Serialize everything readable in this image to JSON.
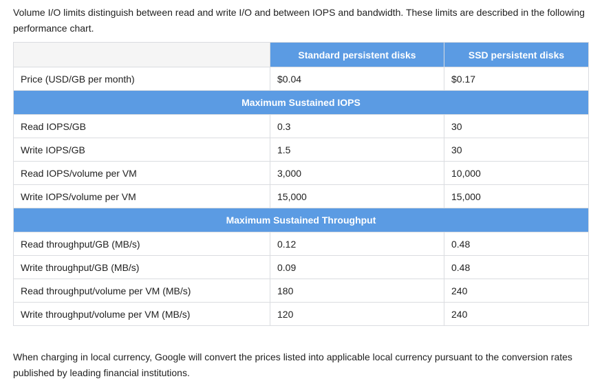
{
  "intro": "Volume I/O limits distinguish between read and write I/O and between IOPS and bandwidth. These limits are described in the following performance chart.",
  "table": {
    "headers": [
      "",
      "Standard persistent disks",
      "SSD persistent disks"
    ],
    "price_row": {
      "label": "Price (USD/GB per month)",
      "standard": "$0.04",
      "ssd": "$0.17"
    },
    "sections": [
      {
        "title": "Maximum Sustained IOPS",
        "rows": [
          {
            "label": "Read IOPS/GB",
            "standard": "0.3",
            "ssd": "30"
          },
          {
            "label": "Write IOPS/GB",
            "standard": "1.5",
            "ssd": "30"
          },
          {
            "label": "Read IOPS/volume per VM",
            "standard": "3,000",
            "ssd": "10,000"
          },
          {
            "label": "Write IOPS/volume per VM",
            "standard": "15,000",
            "ssd": "15,000"
          }
        ]
      },
      {
        "title": "Maximum Sustained Throughput",
        "rows": [
          {
            "label": "Read throughput/GB (MB/s)",
            "standard": "0.12",
            "ssd": "0.48"
          },
          {
            "label": "Write throughput/GB (MB/s)",
            "standard": "0.09",
            "ssd": "0.48"
          },
          {
            "label": "Read throughput/volume per VM (MB/s)",
            "standard": "180",
            "ssd": "240"
          },
          {
            "label": "Write throughput/volume per VM (MB/s)",
            "standard": "120",
            "ssd": "240"
          }
        ]
      }
    ]
  },
  "outro": "When charging in local currency, Google will convert the prices listed into applicable local currency pursuant to the conversion rates published by leading financial institutions.",
  "colors": {
    "header_bg": "#5b9be3",
    "blank_header_bg": "#f5f5f5",
    "border": "#dadce0"
  }
}
